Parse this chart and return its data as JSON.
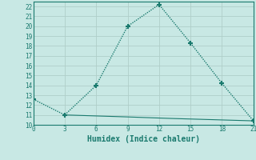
{
  "xlabel": "Humidex (Indice chaleur)",
  "line1_x": [
    0,
    3,
    6,
    9,
    12,
    15,
    18,
    21
  ],
  "line1_y": [
    12.6,
    11.0,
    14.0,
    20.0,
    22.2,
    18.3,
    14.2,
    10.4
  ],
  "line2_x": [
    3,
    9,
    13,
    21
  ],
  "line2_y": [
    11.0,
    10.8,
    10.65,
    10.4
  ],
  "color": "#1a7a6e",
  "bg_color": "#c8e8e4",
  "grid_color_major": "#b0cec9",
  "grid_color_minor": "#d2e8e5",
  "xlim": [
    0,
    21
  ],
  "ylim": [
    10,
    22.5
  ],
  "xticks": [
    0,
    3,
    6,
    9,
    12,
    15,
    18,
    21
  ],
  "yticks": [
    10,
    11,
    12,
    13,
    14,
    15,
    16,
    17,
    18,
    19,
    20,
    21,
    22
  ],
  "marker": "+",
  "markersize": 5,
  "linewidth": 1.0,
  "tick_fontsize": 5.5,
  "xlabel_fontsize": 7.0
}
